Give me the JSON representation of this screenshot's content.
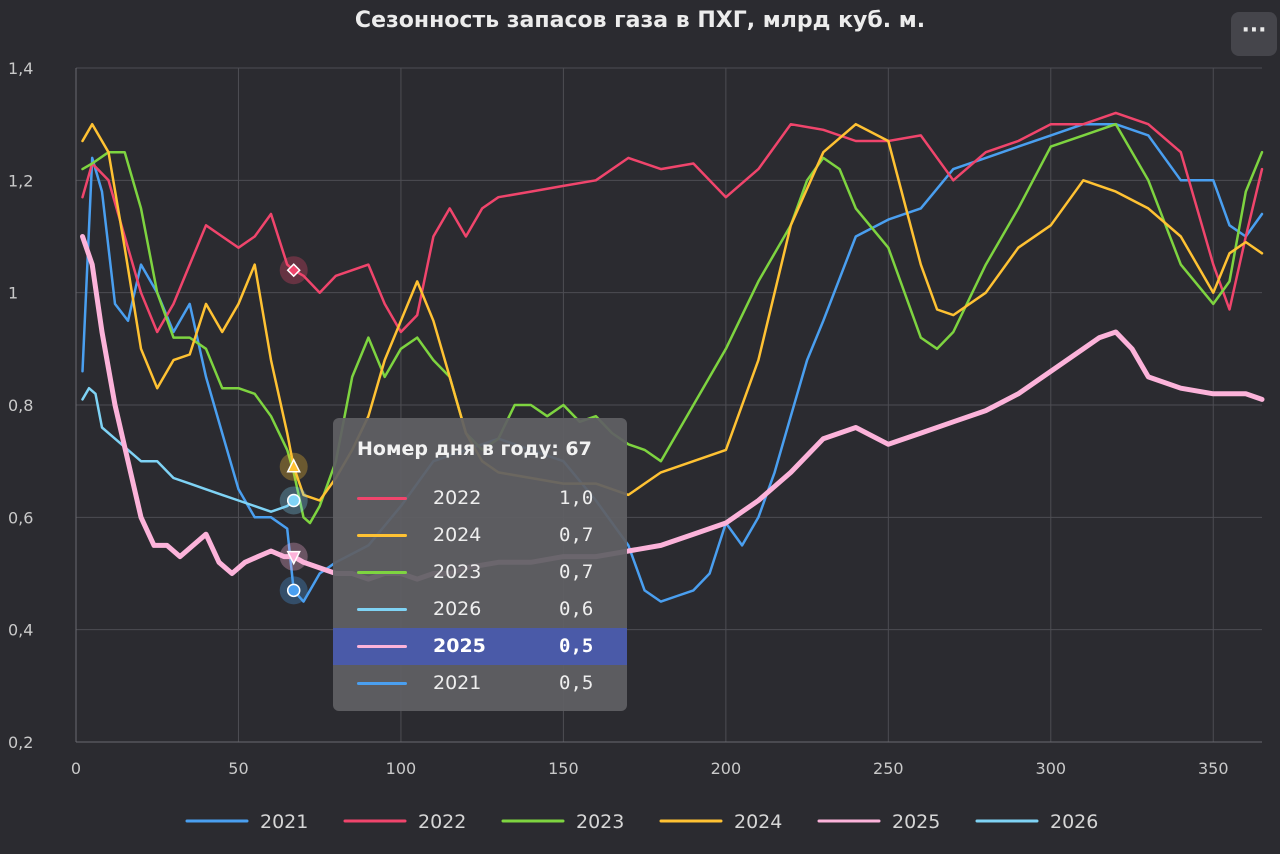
{
  "title": "Сезонность запасов газа в ПХГ, млрд куб. м.",
  "menu_label": "···",
  "chart_data": {
    "type": "line",
    "title": "Сезонность запасов газа в ПХГ, млрд куб. м.",
    "xlabel": "",
    "ylabel": "",
    "xlim": [
      0,
      365
    ],
    "ylim": [
      0.2,
      1.4
    ],
    "x_ticks": [
      0,
      50,
      100,
      150,
      200,
      250,
      300,
      350
    ],
    "y_ticks": [
      0.2,
      0.4,
      0.6,
      0.8,
      1.0,
      1.2,
      1.4
    ],
    "y_tick_labels": [
      "0,2",
      "0,4",
      "0,6",
      "0,8",
      "1",
      "1,2",
      "1,4"
    ],
    "grid": true,
    "legend_position": "bottom",
    "series": [
      {
        "name": "2021",
        "color": "#4a9ff0",
        "x": [
          2,
          5,
          8,
          12,
          16,
          20,
          25,
          30,
          35,
          40,
          45,
          50,
          55,
          60,
          65,
          67,
          70,
          75,
          80,
          90,
          100,
          110,
          120,
          130,
          140,
          150,
          160,
          170,
          175,
          180,
          185,
          190,
          195,
          200,
          205,
          210,
          215,
          220,
          225,
          230,
          240,
          250,
          260,
          270,
          280,
          290,
          300,
          310,
          320,
          330,
          340,
          350,
          355,
          360,
          365
        ],
        "y": [
          0.86,
          1.24,
          1.18,
          0.98,
          0.95,
          1.05,
          1.0,
          0.93,
          0.98,
          0.85,
          0.75,
          0.65,
          0.6,
          0.6,
          0.58,
          0.47,
          0.45,
          0.5,
          0.52,
          0.55,
          0.62,
          0.7,
          0.72,
          0.74,
          0.72,
          0.7,
          0.63,
          0.55,
          0.47,
          0.45,
          0.46,
          0.47,
          0.5,
          0.59,
          0.55,
          0.6,
          0.68,
          0.78,
          0.88,
          0.95,
          1.1,
          1.13,
          1.15,
          1.22,
          1.24,
          1.26,
          1.28,
          1.3,
          1.3,
          1.28,
          1.2,
          1.2,
          1.12,
          1.1,
          1.14
        ]
      },
      {
        "name": "2022",
        "color": "#f0456c",
        "x": [
          2,
          5,
          10,
          15,
          20,
          25,
          30,
          35,
          40,
          45,
          50,
          55,
          60,
          65,
          67,
          70,
          75,
          80,
          85,
          90,
          95,
          100,
          105,
          110,
          115,
          120,
          125,
          130,
          140,
          150,
          160,
          170,
          180,
          190,
          200,
          210,
          220,
          230,
          240,
          250,
          260,
          270,
          280,
          290,
          300,
          310,
          320,
          330,
          340,
          350,
          355,
          360,
          365
        ],
        "y": [
          1.17,
          1.23,
          1.2,
          1.1,
          1.0,
          0.93,
          0.98,
          1.05,
          1.12,
          1.1,
          1.08,
          1.1,
          1.14,
          1.05,
          1.04,
          1.03,
          1.0,
          1.03,
          1.04,
          1.05,
          0.98,
          0.93,
          0.96,
          1.1,
          1.15,
          1.1,
          1.15,
          1.17,
          1.18,
          1.19,
          1.2,
          1.24,
          1.22,
          1.23,
          1.17,
          1.22,
          1.3,
          1.29,
          1.27,
          1.27,
          1.28,
          1.2,
          1.25,
          1.27,
          1.3,
          1.3,
          1.32,
          1.3,
          1.25,
          1.05,
          0.97,
          1.1,
          1.22
        ]
      },
      {
        "name": "2023",
        "color": "#7ed440",
        "x": [
          2,
          5,
          10,
          15,
          20,
          25,
          30,
          35,
          40,
          45,
          50,
          55,
          60,
          65,
          67,
          70,
          72,
          75,
          80,
          85,
          90,
          95,
          100,
          105,
          110,
          115,
          120,
          125,
          130,
          135,
          140,
          145,
          150,
          155,
          160,
          165,
          170,
          175,
          180,
          190,
          200,
          210,
          220,
          225,
          230,
          235,
          240,
          250,
          260,
          265,
          270,
          280,
          290,
          300,
          310,
          320,
          330,
          340,
          350,
          355,
          360,
          365
        ],
        "y": [
          1.22,
          1.23,
          1.25,
          1.25,
          1.15,
          1.0,
          0.92,
          0.92,
          0.9,
          0.83,
          0.83,
          0.82,
          0.78,
          0.72,
          0.68,
          0.6,
          0.59,
          0.62,
          0.7,
          0.85,
          0.92,
          0.85,
          0.9,
          0.92,
          0.88,
          0.85,
          0.75,
          0.72,
          0.74,
          0.8,
          0.8,
          0.78,
          0.8,
          0.77,
          0.78,
          0.75,
          0.73,
          0.72,
          0.7,
          0.8,
          0.9,
          1.02,
          1.12,
          1.2,
          1.24,
          1.22,
          1.15,
          1.08,
          0.92,
          0.9,
          0.93,
          1.05,
          1.15,
          1.26,
          1.28,
          1.3,
          1.2,
          1.05,
          0.98,
          1.02,
          1.18,
          1.25
        ]
      },
      {
        "name": "2024",
        "color": "#ffc233",
        "x": [
          2,
          5,
          10,
          15,
          20,
          25,
          30,
          35,
          40,
          45,
          50,
          55,
          60,
          65,
          67,
          70,
          75,
          80,
          85,
          90,
          95,
          100,
          105,
          110,
          115,
          120,
          125,
          130,
          140,
          150,
          160,
          170,
          175,
          180,
          190,
          200,
          210,
          220,
          230,
          240,
          250,
          260,
          265,
          270,
          280,
          290,
          300,
          310,
          320,
          330,
          340,
          350,
          355,
          360,
          365
        ],
        "y": [
          1.27,
          1.3,
          1.25,
          1.08,
          0.9,
          0.83,
          0.88,
          0.89,
          0.98,
          0.93,
          0.98,
          1.05,
          0.88,
          0.75,
          0.69,
          0.64,
          0.63,
          0.67,
          0.72,
          0.78,
          0.88,
          0.95,
          1.02,
          0.95,
          0.85,
          0.75,
          0.7,
          0.68,
          0.67,
          0.66,
          0.66,
          0.64,
          0.66,
          0.68,
          0.7,
          0.72,
          0.88,
          1.12,
          1.25,
          1.3,
          1.27,
          1.05,
          0.97,
          0.96,
          1.0,
          1.08,
          1.12,
          1.2,
          1.18,
          1.15,
          1.1,
          1.0,
          1.07,
          1.09,
          1.07
        ]
      },
      {
        "name": "2025",
        "color": "#fcb3da",
        "x": [
          2,
          5,
          8,
          12,
          16,
          20,
          24,
          28,
          32,
          36,
          40,
          44,
          48,
          52,
          56,
          60,
          64,
          67,
          70,
          75,
          80,
          85,
          90,
          95,
          100,
          105,
          110,
          115,
          120,
          130,
          140,
          150,
          160,
          170,
          180,
          190,
          200,
          210,
          220,
          230,
          240,
          250,
          260,
          270,
          280,
          290,
          300,
          310,
          315,
          320,
          325,
          330,
          340,
          350,
          360,
          365
        ],
        "y": [
          1.1,
          1.05,
          0.93,
          0.8,
          0.7,
          0.6,
          0.55,
          0.55,
          0.53,
          0.55,
          0.57,
          0.52,
          0.5,
          0.52,
          0.53,
          0.54,
          0.53,
          0.53,
          0.52,
          0.51,
          0.5,
          0.5,
          0.49,
          0.5,
          0.5,
          0.49,
          0.5,
          0.5,
          0.51,
          0.52,
          0.52,
          0.53,
          0.53,
          0.54,
          0.55,
          0.57,
          0.59,
          0.63,
          0.68,
          0.74,
          0.76,
          0.73,
          0.75,
          0.77,
          0.79,
          0.82,
          0.86,
          0.9,
          0.92,
          0.93,
          0.9,
          0.85,
          0.83,
          0.82,
          0.82,
          0.81
        ]
      },
      {
        "name": "2026",
        "color": "#7fd3f5",
        "x": [
          2,
          4,
          6,
          8,
          12,
          16,
          20,
          25,
          30,
          35,
          40,
          45,
          50,
          55,
          60,
          65,
          67
        ],
        "y": [
          0.81,
          0.83,
          0.82,
          0.76,
          0.74,
          0.72,
          0.7,
          0.7,
          0.67,
          0.66,
          0.65,
          0.64,
          0.63,
          0.62,
          0.61,
          0.62,
          0.63
        ]
      }
    ]
  },
  "tooltip": {
    "title": "Номер дня в году: 67",
    "rows": [
      {
        "year": "2022",
        "value": "1,0",
        "color": "#f0456c",
        "highlighted": false
      },
      {
        "year": "2024",
        "value": "0,7",
        "color": "#ffc233",
        "highlighted": false
      },
      {
        "year": "2023",
        "value": "0,7",
        "color": "#7ed440",
        "highlighted": false
      },
      {
        "year": "2026",
        "value": "0,6",
        "color": "#7fd3f5",
        "highlighted": false
      },
      {
        "year": "2025",
        "value": "0,5",
        "color": "#fcb3da",
        "highlighted": true
      },
      {
        "year": "2021",
        "value": "0,5",
        "color": "#4a9ff0",
        "highlighted": false
      }
    ]
  },
  "legend": [
    {
      "label": "2021",
      "color": "#4a9ff0"
    },
    {
      "label": "2022",
      "color": "#f0456c"
    },
    {
      "label": "2023",
      "color": "#7ed440"
    },
    {
      "label": "2024",
      "color": "#ffc233"
    },
    {
      "label": "2025",
      "color": "#fcb3da"
    },
    {
      "label": "2026",
      "color": "#7fd3f5"
    }
  ]
}
